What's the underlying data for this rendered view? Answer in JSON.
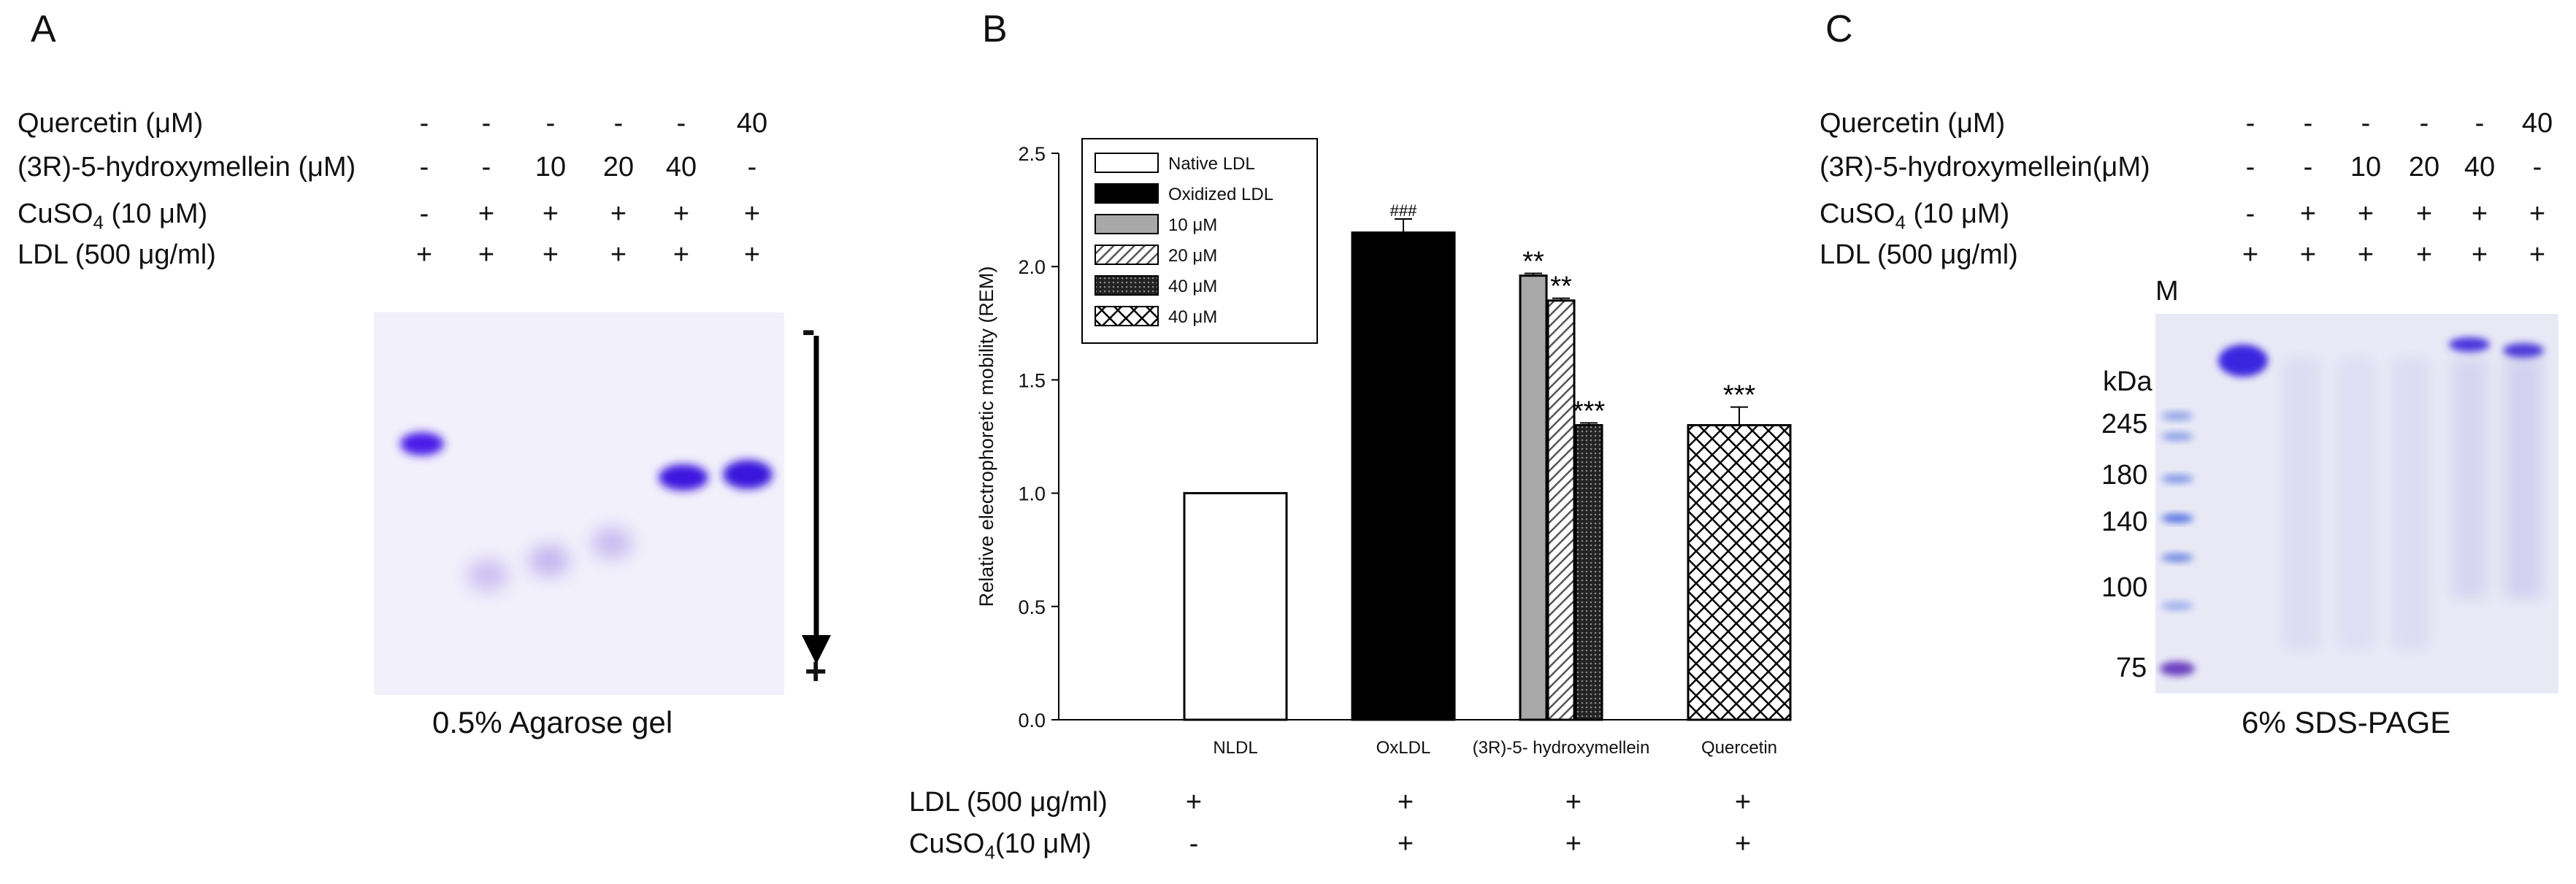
{
  "panels": {
    "A": {
      "letter": "A",
      "rows": [
        {
          "label": "Quercetin (μM)",
          "values": [
            "-",
            "-",
            "-",
            "-",
            "-",
            "40"
          ]
        },
        {
          "label": "(3R)-5-hydroxymellein (μM)",
          "values": [
            "-",
            "-",
            "10",
            "20",
            "40",
            "-"
          ]
        },
        {
          "label": "CuSO",
          "label_sub": "4",
          "label_suffix": " (10 μM)",
          "values": [
            "-",
            "+",
            "+",
            "+",
            "+",
            "+"
          ]
        },
        {
          "label": "LDL (500 μg/ml)",
          "values": [
            "+",
            "+",
            "+",
            "+",
            "+",
            "+"
          ]
        }
      ],
      "gel_caption": "0.5% Agarose gel",
      "arrow_top_sign": "-",
      "arrow_bottom_sign": "+"
    },
    "B": {
      "letter": "B",
      "bottom_rows": [
        {
          "label": "LDL (500 μg/ml)",
          "values": [
            "+",
            "+",
            "+",
            "+"
          ]
        },
        {
          "label": "CuSO",
          "label_sub": "4",
          "label_suffix": "(10 μM)",
          "values": [
            "-",
            "+",
            "+",
            "+"
          ]
        }
      ]
    },
    "C": {
      "letter": "C",
      "rows": [
        {
          "label": "Quercetin (μM)",
          "values": [
            "-",
            "-",
            "-",
            "-",
            "-",
            "40"
          ]
        },
        {
          "label": "(3R)-5-hydroxymellein(μM)",
          "values": [
            "-",
            "-",
            "10",
            "20",
            "40",
            "-"
          ]
        },
        {
          "label": "CuSO",
          "label_sub": "4",
          "label_suffix": " (10 μM)",
          "values": [
            "-",
            "+",
            "+",
            "+",
            "+",
            "+"
          ]
        },
        {
          "label": "LDL (500 μg/ml)",
          "values": [
            "+",
            "+",
            "+",
            "+",
            "+",
            "+"
          ]
        }
      ],
      "marker_lane": "M",
      "kda_label": "kDa",
      "markers": [
        "245",
        "180",
        "140",
        "100",
        "75"
      ],
      "gel_caption": "6% SDS-PAGE"
    }
  },
  "chart_data": {
    "type": "bar",
    "title": "",
    "ylabel": "Relative electrophoretic mobility (REM)",
    "xlabel": "",
    "ylim": [
      0.0,
      2.5
    ],
    "yticks": [
      "0.0",
      "0.5",
      "1.0",
      "1.5",
      "2.0",
      "2.5"
    ],
    "categories": [
      "NLDL",
      "OxLDL",
      "(3R)-5- hydroxymellein",
      "Quercetin"
    ],
    "series": [
      {
        "name": "Native LDL",
        "pattern": "white",
        "values": [
          1.0,
          null,
          null,
          null
        ],
        "error": [
          0,
          null,
          null,
          null
        ],
        "sig": [
          "",
          null,
          null,
          null
        ]
      },
      {
        "name": "Oxidized LDL",
        "pattern": "black",
        "values": [
          null,
          2.15,
          null,
          null
        ],
        "error": [
          null,
          0.06,
          null,
          null
        ],
        "sig": [
          null,
          "###",
          null,
          null
        ]
      },
      {
        "name": "10 μM",
        "pattern": "gray",
        "values": [
          null,
          null,
          1.96,
          null
        ],
        "error": [
          null,
          null,
          0.01,
          null
        ],
        "sig": [
          null,
          null,
          "**",
          null
        ]
      },
      {
        "name": "20 μM",
        "pattern": "hatch",
        "values": [
          null,
          null,
          1.85,
          null
        ],
        "error": [
          null,
          null,
          0.01,
          null
        ],
        "sig": [
          null,
          null,
          "**",
          null
        ]
      },
      {
        "name": "40 μM",
        "pattern": "dense",
        "values": [
          null,
          null,
          1.3,
          null
        ],
        "error": [
          null,
          null,
          0.01,
          null
        ],
        "sig": [
          null,
          null,
          "***",
          null
        ]
      },
      {
        "name": "40 μM",
        "pattern": "cross",
        "values": [
          null,
          null,
          null,
          1.3
        ],
        "error": [
          null,
          null,
          null,
          0.08
        ],
        "sig": [
          null,
          null,
          null,
          "***"
        ]
      }
    ],
    "legend_position": "top-left"
  }
}
